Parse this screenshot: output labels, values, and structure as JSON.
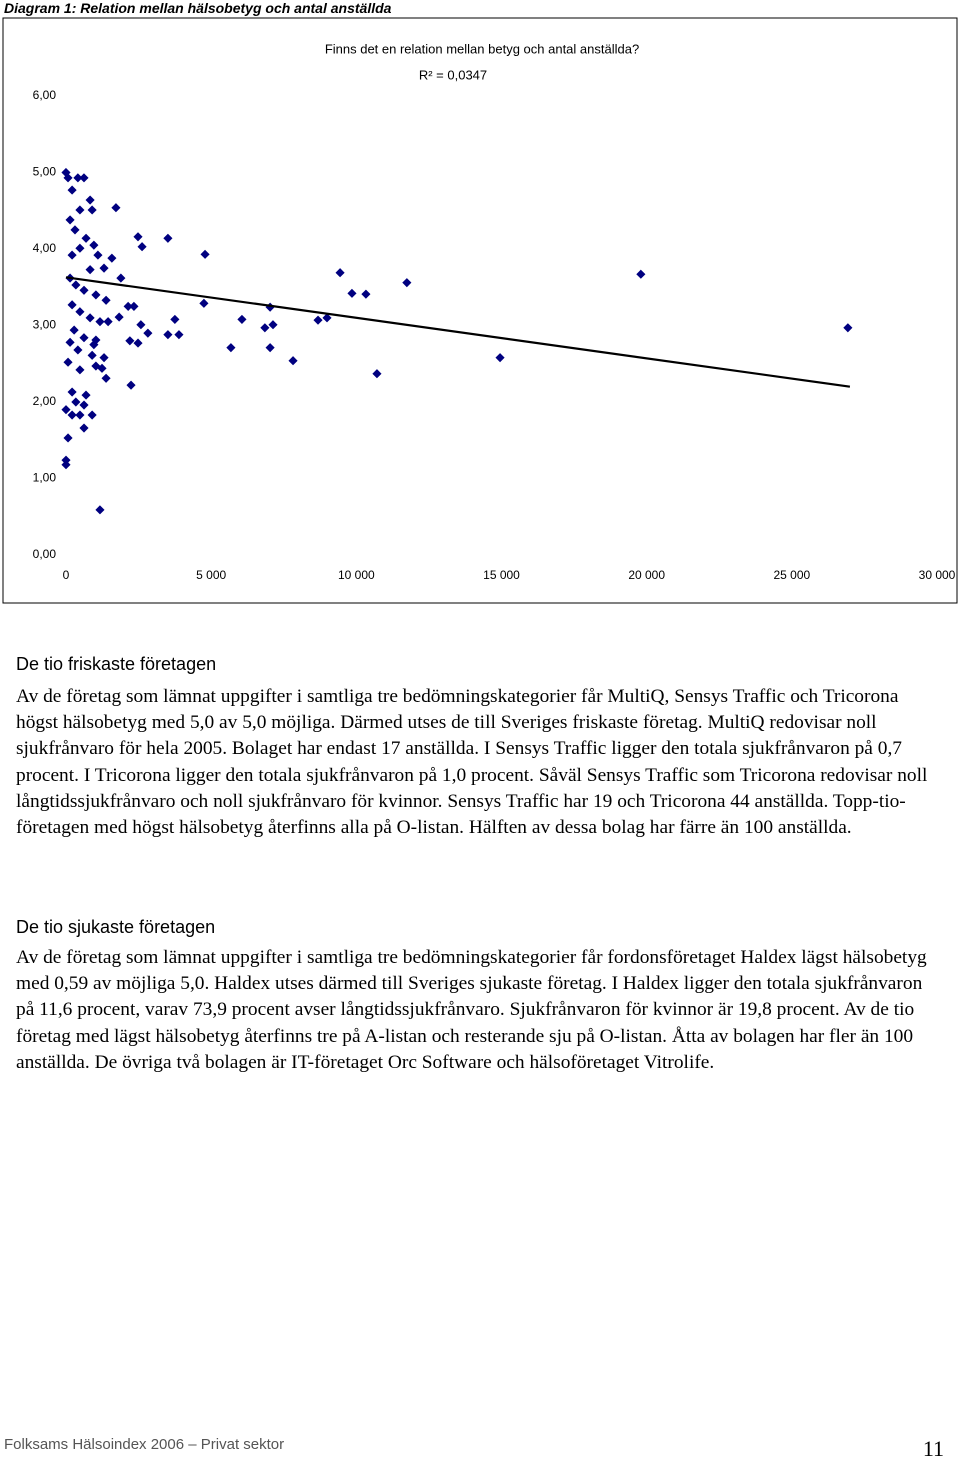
{
  "chart_data": {
    "type": "scatter",
    "caption": "Diagram 1: Relation mellan hälsobetyg och antal anställda",
    "title": "Finns det en relation mellan betyg och antal anställda?",
    "annotation": "R² = 0,0347",
    "color": "#000080",
    "x": [
      26930,
      19800,
      14950,
      11740,
      10710,
      10330,
      9850,
      9440,
      8990,
      8680,
      7820,
      7030,
      7030,
      7130,
      6850,
      6060,
      5680,
      4790,
      4750,
      3750,
      3890,
      3510,
      3510,
      2820,
      2620,
      2480,
      2580,
      2480,
      2340,
      2140,
      2200,
      2240,
      1720,
      1830,
      1890,
      1580,
      1170,
      0,
      70,
      210,
      410,
      620,
      830,
      900,
      480,
      140,
      310,
      690,
      960,
      210,
      480,
      1100,
      1310,
      830,
      140,
      340,
      620,
      1030,
      1380,
      210,
      480,
      830,
      1170,
      280,
      620,
      960,
      140,
      410,
      900,
      1310,
      70,
      480,
      1030,
      1380,
      210,
      690,
      340,
      0,
      620,
      210,
      480,
      900,
      620,
      70,
      0,
      0,
      1240,
      1450,
      1030
    ],
    "y": [
      2.97,
      3.67,
      2.58,
      3.56,
      2.37,
      3.41,
      3.42,
      3.69,
      3.1,
      3.07,
      2.54,
      3.24,
      2.71,
      3.01,
      2.97,
      3.08,
      2.71,
      3.93,
      3.29,
      3.08,
      2.88,
      4.14,
      2.88,
      2.9,
      4.03,
      4.16,
      3.01,
      2.77,
      3.25,
      3.25,
      2.8,
      2.22,
      4.54,
      3.11,
      3.62,
      3.88,
      0.59,
      5.0,
      4.93,
      4.77,
      4.93,
      4.93,
      4.64,
      4.51,
      4.51,
      4.38,
      4.25,
      4.14,
      4.05,
      3.92,
      4.01,
      3.92,
      3.75,
      3.73,
      3.62,
      3.53,
      3.46,
      3.4,
      3.33,
      3.27,
      3.18,
      3.1,
      3.05,
      2.94,
      2.84,
      2.75,
      2.78,
      2.68,
      2.61,
      2.58,
      2.52,
      2.42,
      2.47,
      2.31,
      2.13,
      2.09,
      2.0,
      1.9,
      1.96,
      1.83,
      1.83,
      1.83,
      1.66,
      1.53,
      1.24,
      1.18,
      2.44,
      3.05,
      2.81
    ],
    "trendline": {
      "x": [
        0,
        27000
      ],
      "y": [
        3.63,
        2.2
      ]
    },
    "xlim": [
      0,
      30000
    ],
    "xticks": [
      0,
      {
        "value": 5000,
        "label": "5 000"
      },
      {
        "value": 10000,
        "label": "10 000"
      },
      {
        "value": 15000,
        "label": "15 000"
      },
      {
        "value": 20000,
        "label": "20 000"
      },
      {
        "value": 25000,
        "label": "25 000"
      },
      {
        "value": 30000,
        "label": "30 000"
      }
    ],
    "ylim": [
      0,
      6
    ],
    "yticks": [
      {
        "value": 0,
        "label": "0,00"
      },
      {
        "value": 1,
        "label": "1,00"
      },
      {
        "value": 2,
        "label": "2,00"
      },
      {
        "value": 3,
        "label": "3,00"
      },
      {
        "value": 4,
        "label": "4,00"
      },
      {
        "value": 5,
        "label": "5,00"
      },
      {
        "value": 6,
        "label": "6,00"
      }
    ]
  },
  "sections": [
    {
      "heading": "De tio friskaste företagen",
      "text": "Av de företag som lämnat uppgifter i samtliga tre bedömningskategorier får MultiQ, Sensys Traffic och Tricorona högst hälsobetyg med 5,0 av 5,0 möjliga. Därmed utses de till Sveriges friskaste företag. MultiQ redovisar noll sjukfrånvaro för hela 2005. Bolaget har endast 17 anställda. I Sensys Traffic ligger den totala sjukfrånvaron på 0,7 procent. I Tricorona ligger den totala sjukfrånvaron på 1,0 procent. Såväl Sensys Traffic som Tricorona redovisar noll långtidssjukfrånvaro och noll sjukfrånvaro för kvinnor. Sensys Traffic har 19 och Tricorona 44 anställda. Topp-tio-företagen med högst hälsobetyg återfinns alla på O-listan. Hälften av dessa bolag har färre än 100 anställda."
    },
    {
      "heading": "De tio sjukaste företagen",
      "text": "Av de företag som lämnat uppgifter i samtliga tre bedömningskategorier får fordonsföretaget Haldex lägst hälsobetyg med 0,59 av möjliga 5,0. Haldex utses därmed till Sveriges sjukaste företag. I Haldex ligger den totala sjukfrånvaron på 11,6 procent, varav 73,9 procent avser långtidssjukfrånvaro. Sjukfrånvaron för kvinnor är 19,8 procent. Av de tio företag med lägst hälsobetyg återfinns tre på A-listan och resterande sju på O-listan. Åtta av bolagen har fler än 100 anställda. De övriga två bolagen är IT-företaget Orc Software och hälsoföretaget Vitrolife."
    }
  ],
  "footer": {
    "text": "Folksams Hälsoindex 2006 – Privat sektor",
    "page": "11"
  }
}
